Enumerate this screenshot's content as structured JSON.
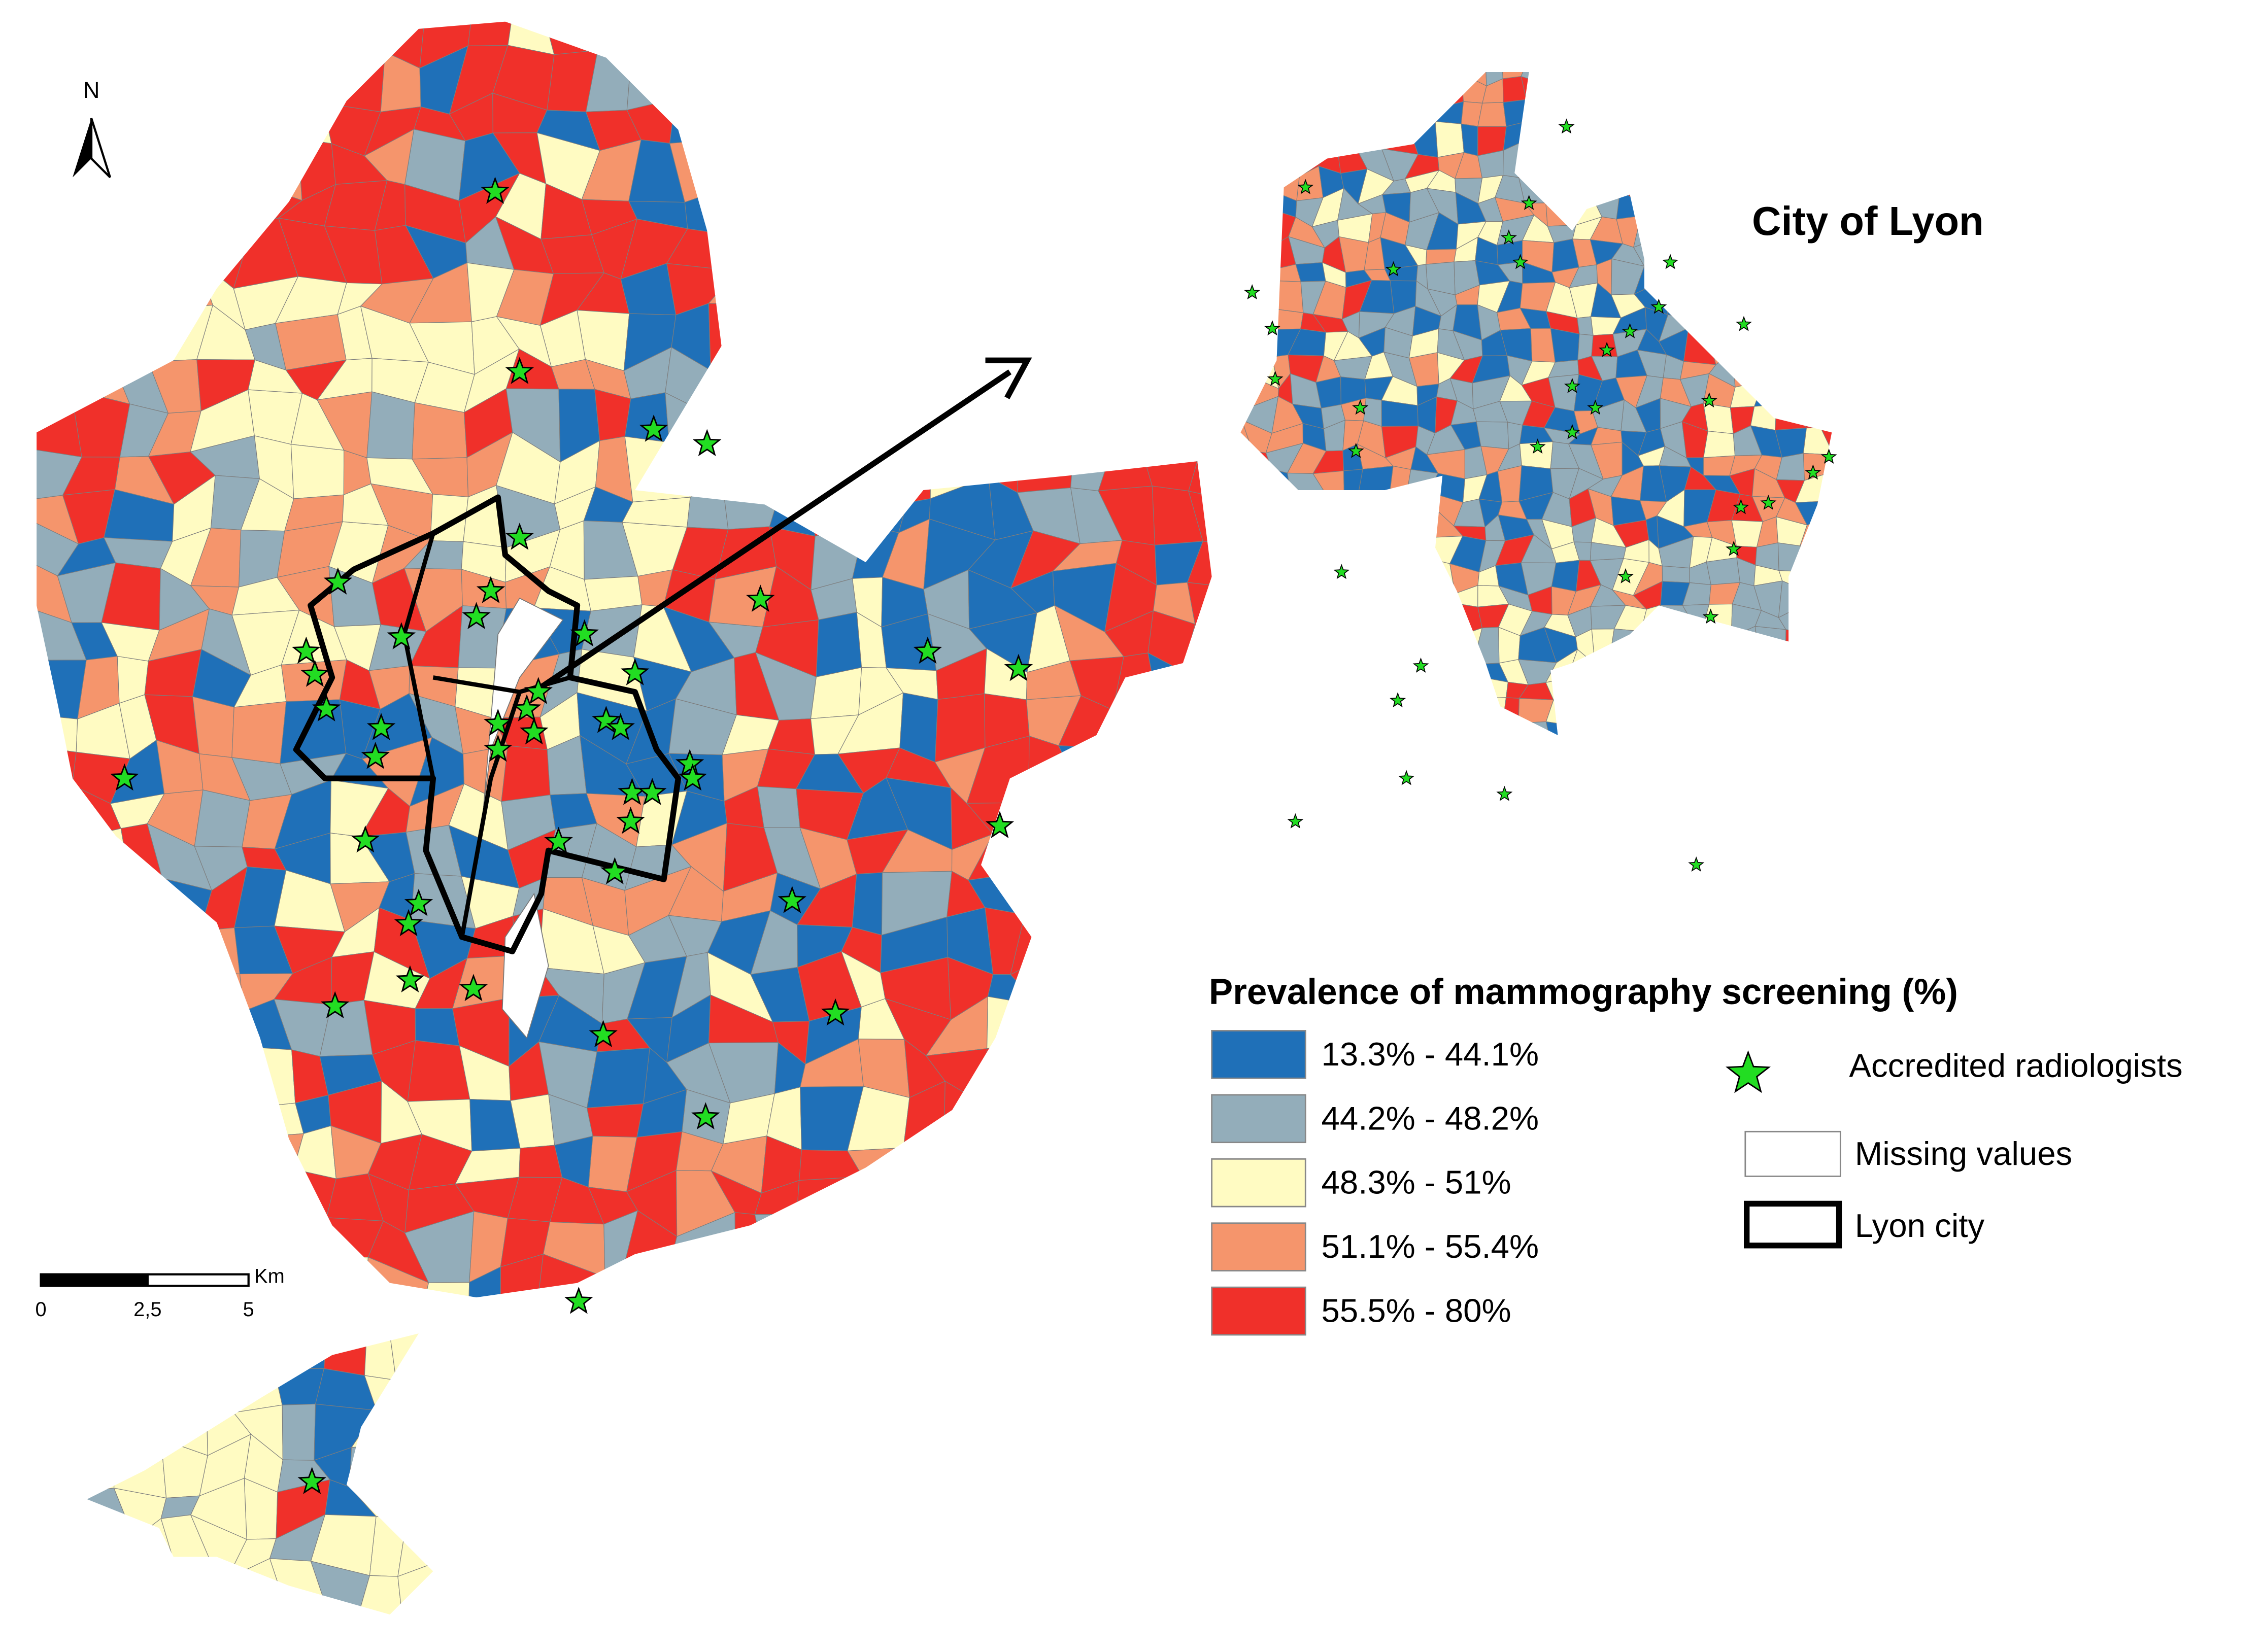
{
  "north_label": "N",
  "inset_title": "City of Lyon",
  "legend": {
    "title": "Prevalence of mammography screening (%)",
    "classes": [
      {
        "label": "13.3% - 44.1%",
        "color": "#1f70b8"
      },
      {
        "label": "44.2% - 48.2%",
        "color": "#93adba"
      },
      {
        "label": "48.3% - 51%",
        "color": "#fffbc2"
      },
      {
        "label": "51.1% - 55.4%",
        "color": "#f5956c"
      },
      {
        "label": "55.5% - 80%",
        "color": "#f0302a"
      }
    ],
    "radiologists": "Accredited radiologists",
    "missing": "Missing values",
    "lyon_city": "Lyon city"
  },
  "scale_bar": {
    "unit": "Km",
    "labels": [
      "0",
      "2,5",
      "5"
    ]
  }
}
